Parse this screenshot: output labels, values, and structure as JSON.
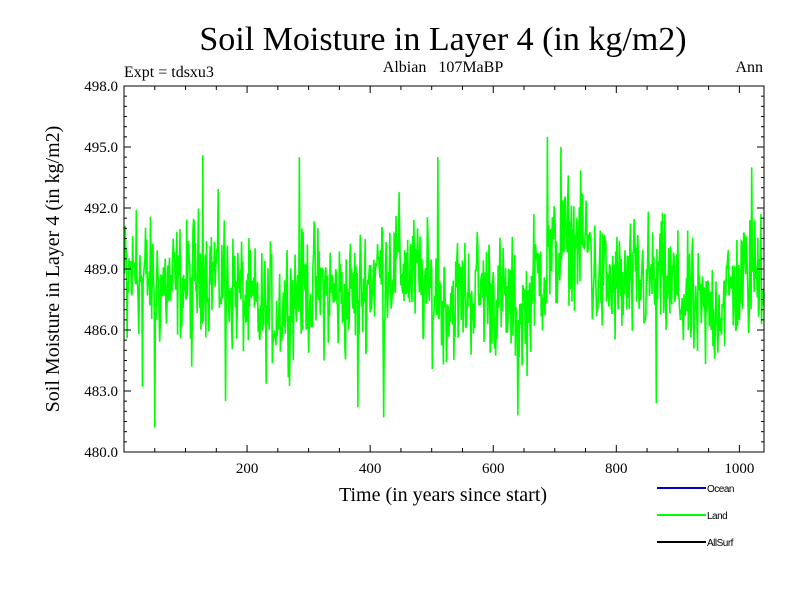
{
  "chart_data": {
    "type": "line",
    "title": "Soil Moisture in Layer 4 (in kg/m2)",
    "subtitle_left": "Expt = tdsxu3",
    "subtitle_center": "Albian   107MaBP",
    "subtitle_right": "Ann",
    "xlabel": "Time (in years since start)",
    "ylabel": "Soil Moisture in Layer 4 (in kg/m2)",
    "xlim": [
      0,
      1040
    ],
    "ylim": [
      480.0,
      498.0
    ],
    "x_ticks": [
      200,
      400,
      600,
      800,
      1000
    ],
    "x_tick_labels": [
      "200",
      "400",
      "600",
      "800",
      "1000"
    ],
    "y_ticks": [
      480.0,
      483.0,
      486.0,
      489.0,
      492.0,
      495.0,
      498.0
    ],
    "y_tick_labels": [
      "480.0",
      "483.0",
      "486.0",
      "489.0",
      "492.0",
      "495.0",
      "498.0"
    ],
    "series": [
      {
        "name": "Land",
        "color": "#00ff00",
        "x_start": 1,
        "x_end": 1040,
        "mean": 488.0,
        "typical_range": [
          485.0,
          491.0
        ],
        "keypoints": [
          {
            "x": 5,
            "y": 485.6
          },
          {
            "x": 20,
            "y": 491.9
          },
          {
            "x": 30,
            "y": 483.2
          },
          {
            "x": 50,
            "y": 481.2
          },
          {
            "x": 110,
            "y": 484.2
          },
          {
            "x": 128,
            "y": 494.6
          },
          {
            "x": 165,
            "y": 482.5
          },
          {
            "x": 285,
            "y": 494.5
          },
          {
            "x": 380,
            "y": 482.2
          },
          {
            "x": 422,
            "y": 481.7
          },
          {
            "x": 510,
            "y": 494.5
          },
          {
            "x": 640,
            "y": 481.8
          },
          {
            "x": 688,
            "y": 495.5
          },
          {
            "x": 710,
            "y": 495.0
          },
          {
            "x": 865,
            "y": 482.4
          },
          {
            "x": 1020,
            "y": 494.0
          },
          {
            "x": 1035,
            "y": 491.7
          }
        ]
      }
    ],
    "legend": [
      {
        "label": "Ocean",
        "color": "#0000cc"
      },
      {
        "label": "Land",
        "color": "#00ff00"
      },
      {
        "label": "AllSurf",
        "color": "#000000"
      }
    ]
  }
}
